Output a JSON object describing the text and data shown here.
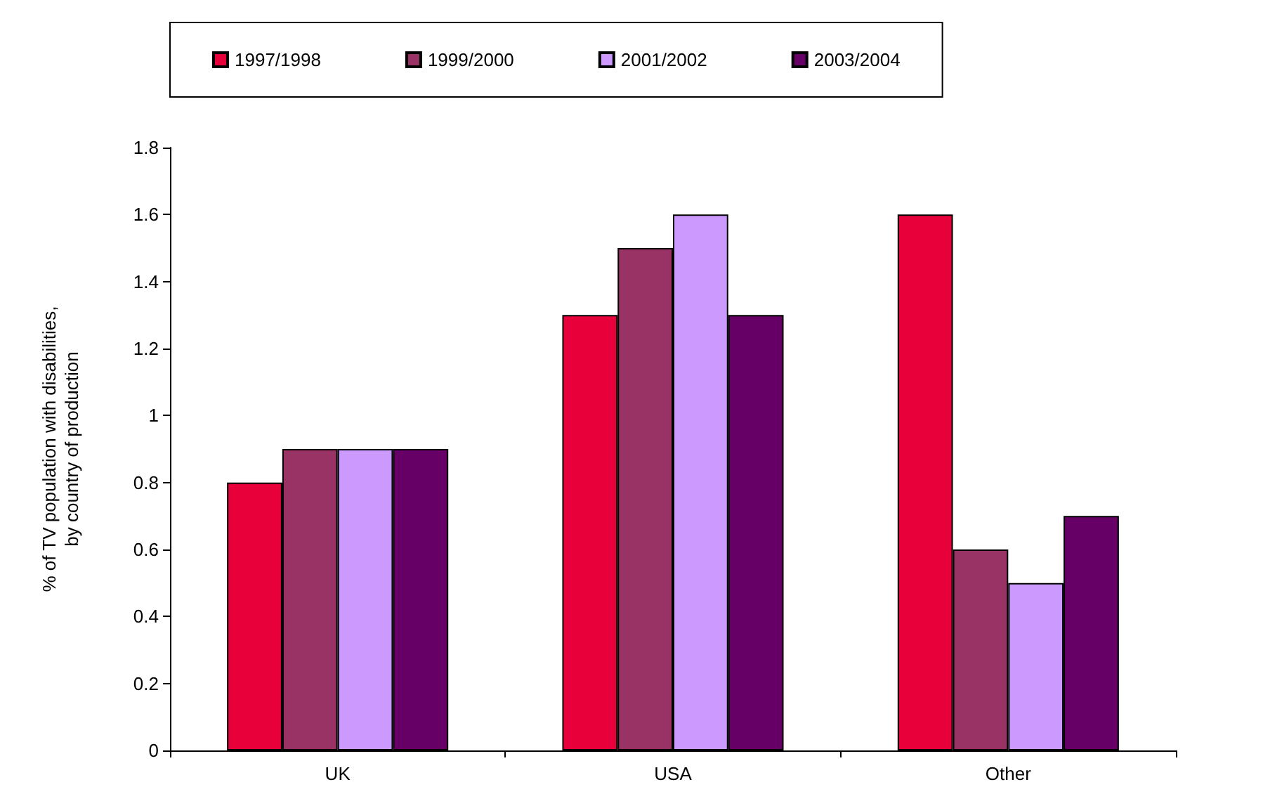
{
  "chart_data": {
    "type": "bar",
    "ylabel": "% of TV population with disabilities,\nby country of production",
    "categories": [
      "UK",
      "USA",
      "Other"
    ],
    "series": [
      {
        "name": "1997/1998",
        "color": "#e8003a",
        "values": [
          0.8,
          1.3,
          1.6
        ]
      },
      {
        "name": "1999/2000",
        "color": "#993366",
        "values": [
          0.9,
          1.5,
          0.6
        ]
      },
      {
        "name": "2001/2002",
        "color": "#cc99ff",
        "values": [
          0.9,
          1.6,
          0.5
        ]
      },
      {
        "name": "2003/2004",
        "color": "#660066",
        "values": [
          0.9,
          1.3,
          0.7
        ]
      }
    ],
    "ylim": [
      0,
      1.8
    ],
    "yticks": [
      0,
      0.2,
      0.4,
      0.6,
      0.8,
      1,
      1.2,
      1.4,
      1.6,
      1.8
    ],
    "grid": false,
    "legend": "top"
  }
}
